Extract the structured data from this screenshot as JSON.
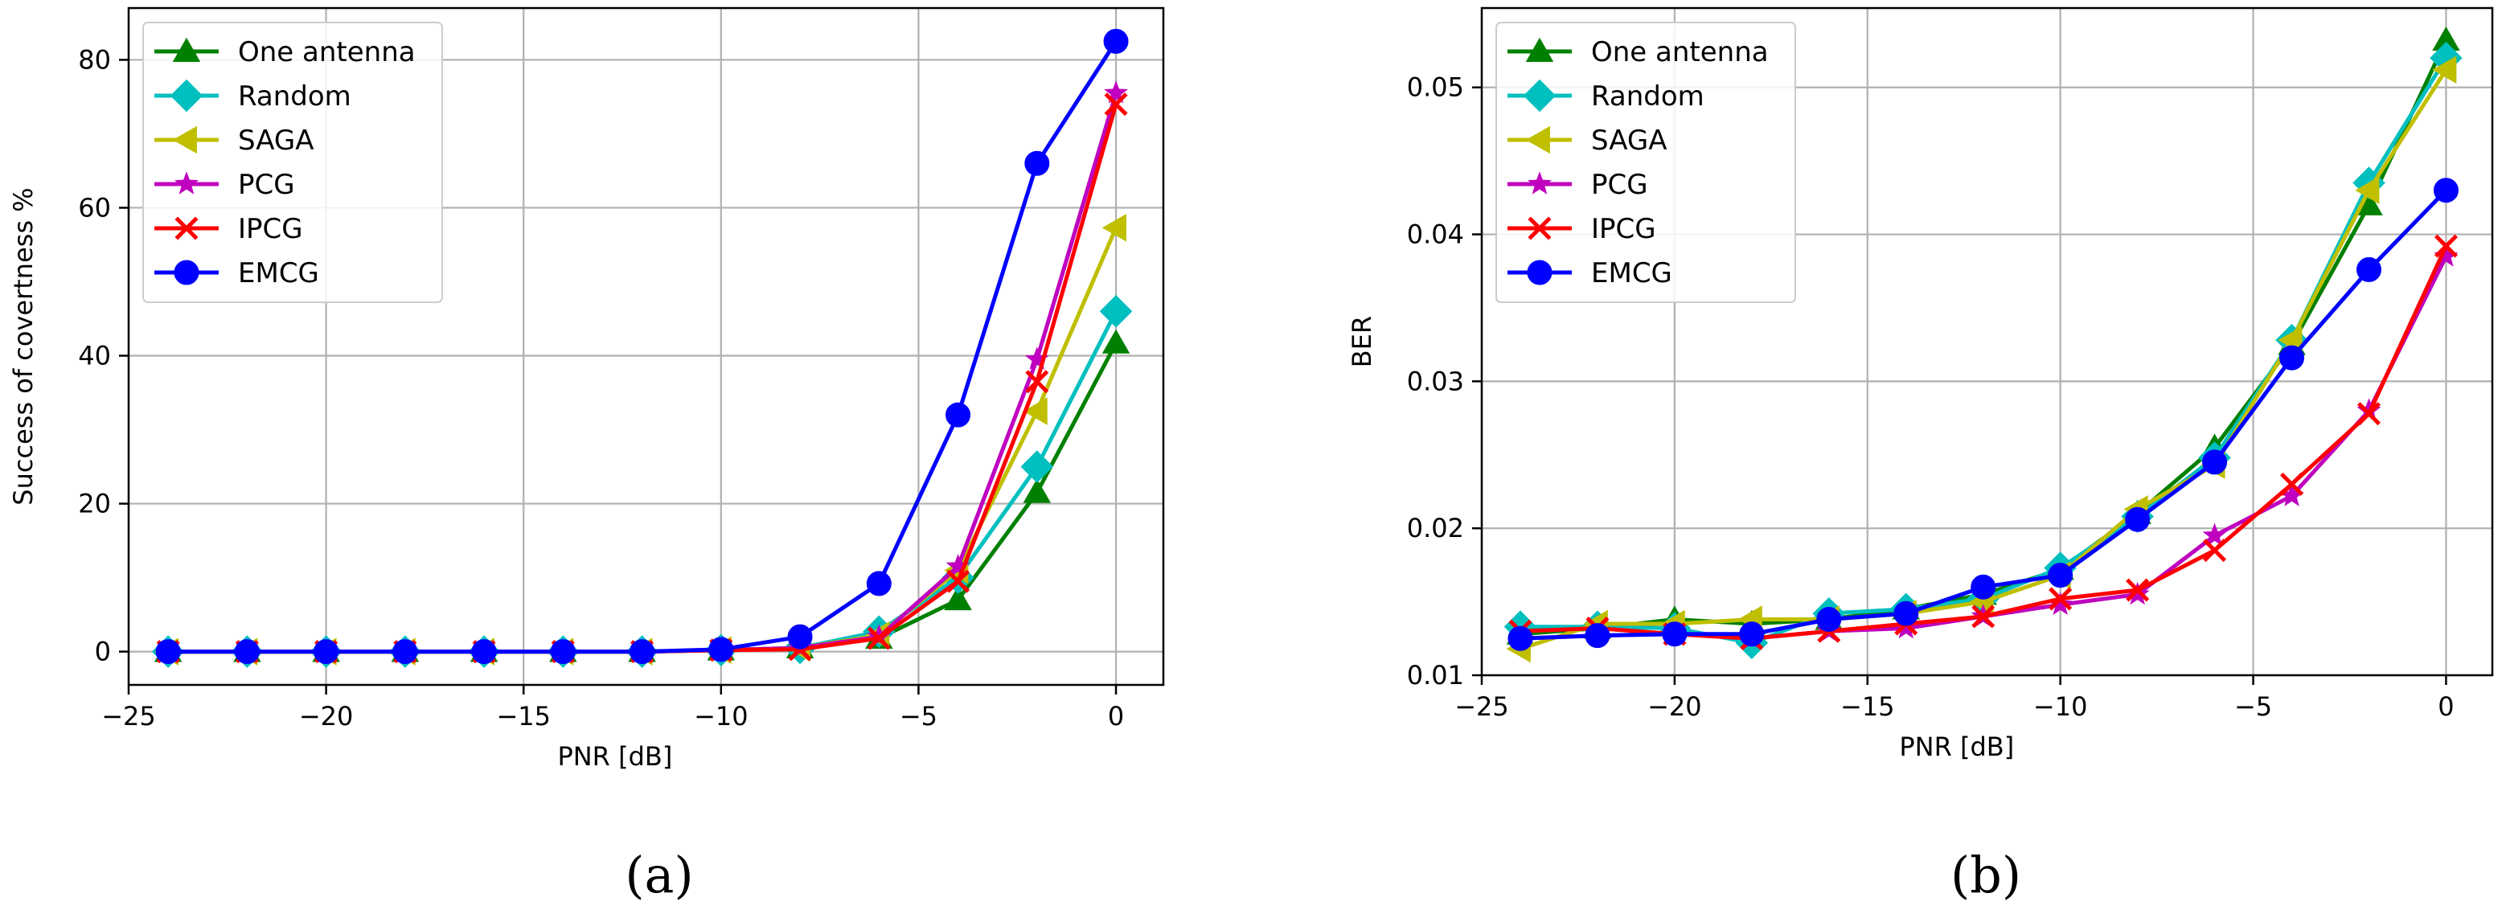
{
  "chart_data": [
    {
      "type": "line",
      "caption": "(a)",
      "xlabel": "PNR [dB]",
      "ylabel": "Success of covertness %",
      "xlim": [
        -25,
        1.2
      ],
      "ylim": [
        -4.5,
        87
      ],
      "xticks": [
        -25,
        -20,
        -15,
        -10,
        -5,
        0
      ],
      "yticks": [
        0,
        20,
        40,
        60,
        80
      ],
      "ytick_labels": [
        "0",
        "20",
        "40",
        "60",
        "80"
      ],
      "grid": true,
      "legend_position": "top-left",
      "x": [
        -24,
        -22,
        -20,
        -18,
        -16,
        -14,
        -12,
        -10,
        -8,
        -6,
        -4,
        -2,
        0
      ],
      "series": [
        {
          "name": "One antenna",
          "color": "#008000",
          "marker": "triangle-up",
          "values": [
            0,
            0,
            0,
            0,
            0,
            0,
            0,
            0.2,
            0.5,
            1.8,
            7,
            21.5,
            41.7
          ]
        },
        {
          "name": "Random",
          "color": "#00BFBF",
          "marker": "diamond",
          "values": [
            0,
            0,
            0,
            0,
            0,
            0,
            0,
            0.2,
            0.5,
            2.7,
            10,
            25,
            46
          ]
        },
        {
          "name": "SAGA",
          "color": "#BFBF00",
          "marker": "triangle-left",
          "values": [
            0,
            0,
            0,
            0,
            0,
            0,
            0,
            0.2,
            0.5,
            2.2,
            11,
            32.5,
            57.3
          ]
        },
        {
          "name": "PCG",
          "color": "#BF00BF",
          "marker": "star",
          "values": [
            0,
            0,
            0,
            0,
            0,
            0,
            0,
            0.2,
            0.5,
            2,
            11.5,
            39.5,
            75.5
          ]
        },
        {
          "name": "IPCG",
          "color": "#FF0000",
          "marker": "x",
          "values": [
            0,
            0,
            0,
            0,
            0,
            0,
            0,
            0.2,
            0.3,
            1.8,
            9.5,
            36.5,
            74
          ]
        },
        {
          "name": "EMCG",
          "color": "#0000FF",
          "marker": "circle",
          "values": [
            0,
            0,
            0,
            0,
            0,
            0,
            0,
            0.3,
            2,
            9.2,
            32,
            66,
            82.5
          ]
        }
      ]
    },
    {
      "type": "line",
      "caption": "(b)",
      "xlabel": "PNR [dB]",
      "ylabel": "BER",
      "xlim": [
        -25,
        1.2
      ],
      "ylim": [
        0.01,
        0.0554
      ],
      "xticks": [
        -25,
        -20,
        -15,
        -10,
        -5,
        0
      ],
      "yticks": [
        0.01,
        0.02,
        0.03,
        0.04,
        0.05
      ],
      "ytick_labels": [
        "0.01",
        "0.02",
        "0.03",
        "0.04",
        "0.05"
      ],
      "grid": true,
      "legend_position": "top-left",
      "x": [
        -24,
        -22,
        -20,
        -18,
        -16,
        -14,
        -12,
        -10,
        -8,
        -6,
        -4,
        -2,
        0
      ],
      "series": [
        {
          "name": "One antenna",
          "color": "#008000",
          "marker": "triangle-up",
          "values": [
            0.0128,
            0.0132,
            0.0138,
            0.0135,
            0.0138,
            0.0145,
            0.0155,
            0.0172,
            0.021,
            0.0255,
            0.0325,
            0.042,
            0.0532
          ]
        },
        {
          "name": "Random",
          "color": "#00BFBF",
          "marker": "diamond",
          "values": [
            0.0133,
            0.0133,
            0.0132,
            0.0122,
            0.0142,
            0.0145,
            0.0152,
            0.0173,
            0.0208,
            0.0248,
            0.0328,
            0.0435,
            0.052
          ]
        },
        {
          "name": "SAGA",
          "color": "#BFBF00",
          "marker": "triangle-left",
          "values": [
            0.0118,
            0.0135,
            0.0135,
            0.0138,
            0.0138,
            0.0142,
            0.015,
            0.0168,
            0.0213,
            0.0243,
            0.0328,
            0.043,
            0.0512
          ]
        },
        {
          "name": "PCG",
          "color": "#BF00BF",
          "marker": "star",
          "values": [
            0.0125,
            0.0127,
            0.0128,
            0.0125,
            0.013,
            0.0132,
            0.014,
            0.0148,
            0.0155,
            0.0195,
            0.0222,
            0.028,
            0.0385
          ]
        },
        {
          "name": "IPCG",
          "color": "#FF0000",
          "marker": "x",
          "values": [
            0.013,
            0.0132,
            0.0128,
            0.0125,
            0.013,
            0.0135,
            0.014,
            0.0152,
            0.0158,
            0.0185,
            0.023,
            0.0278,
            0.0392
          ]
        },
        {
          "name": "EMCG",
          "color": "#0000FF",
          "marker": "circle",
          "values": [
            0.0125,
            0.0127,
            0.0128,
            0.0128,
            0.0138,
            0.0142,
            0.016,
            0.0168,
            0.0206,
            0.0245,
            0.0316,
            0.0376,
            0.043
          ]
        }
      ]
    }
  ]
}
